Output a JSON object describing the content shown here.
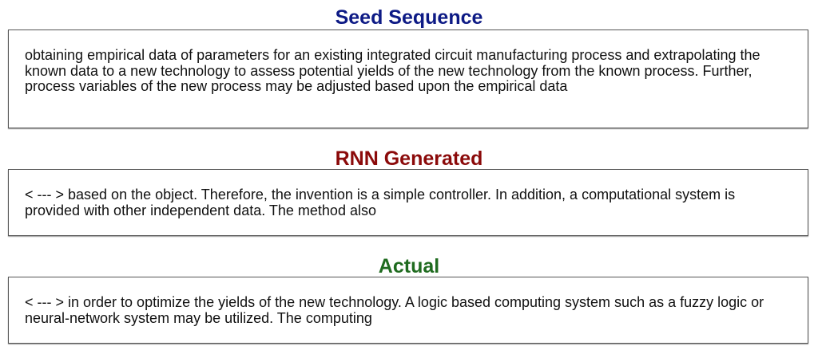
{
  "sections": [
    {
      "title": "Seed Sequence",
      "color": "#0d1a85",
      "text": "obtaining empirical data of parameters for an existing integrated circuit manufacturing process and extrapolating the known data to a new technology to assess potential yields of the new technology from the known process. Further, process variables of the new process may be adjusted based upon the empirical data"
    },
    {
      "title": "RNN Generated",
      "color": "#8b0a0a",
      "text": "< --- > based on the object. Therefore, the invention is a simple controller. In addition, a computational system is provided with other independent data. The method also"
    },
    {
      "title": "Actual",
      "color": "#1f6b1f",
      "text": "< --- > in order to optimize the yields of the new technology. A logic based computing system such as a fuzzy logic or neural-network system may be utilized. The computing"
    }
  ]
}
